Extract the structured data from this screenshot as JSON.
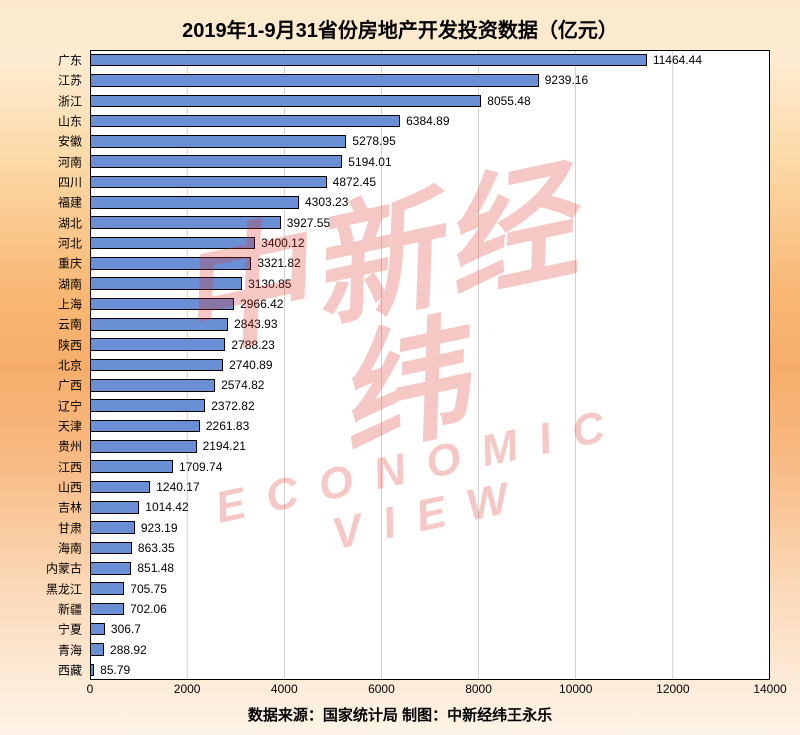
{
  "title": "2019年1-9月31省份房地产开发投资数据（亿元）",
  "title_fontsize": 20,
  "source": "数据来源：国家统计局  制图：中新经纬王永乐",
  "watermark_cn": "中新经纬",
  "watermark_en": "ECONOMIC VIEW",
  "chart": {
    "type": "bar-horizontal",
    "xlim": [
      0,
      14000
    ],
    "xtick_step": 2000,
    "xlabels": [
      "0",
      "2000",
      "4000",
      "6000",
      "8000",
      "10000",
      "12000",
      "14000"
    ],
    "bar_fill": "#6b8fd4",
    "bar_border": "#000000",
    "grid_color": "#000000",
    "background_color": "#ffffff",
    "bar_height_ratio": 0.62,
    "label_fontsize": 12,
    "data": [
      {
        "name": "广东",
        "value": 11464.44
      },
      {
        "name": "江苏",
        "value": 9239.16
      },
      {
        "name": "浙江",
        "value": 8055.48
      },
      {
        "name": "山东",
        "value": 6384.89
      },
      {
        "name": "安徽",
        "value": 5278.95
      },
      {
        "name": "河南",
        "value": 5194.01
      },
      {
        "name": "四川",
        "value": 4872.45
      },
      {
        "name": "福建",
        "value": 4303.23
      },
      {
        "name": "湖北",
        "value": 3927.55
      },
      {
        "name": "河北",
        "value": 3400.12
      },
      {
        "name": "重庆",
        "value": 3321.82
      },
      {
        "name": "湖南",
        "value": 3130.85
      },
      {
        "name": "上海",
        "value": 2966.42
      },
      {
        "name": "云南",
        "value": 2843.93
      },
      {
        "name": "陕西",
        "value": 2788.23
      },
      {
        "name": "北京",
        "value": 2740.89
      },
      {
        "name": "广西",
        "value": 2574.82
      },
      {
        "name": "辽宁",
        "value": 2372.82
      },
      {
        "name": "天津",
        "value": 2261.83
      },
      {
        "name": "贵州",
        "value": 2194.21
      },
      {
        "name": "江西",
        "value": 1709.74
      },
      {
        "name": "山西",
        "value": 1240.17
      },
      {
        "name": "吉林",
        "value": 1014.42
      },
      {
        "name": "甘肃",
        "value": 923.19
      },
      {
        "name": "海南",
        "value": 863.35
      },
      {
        "name": "内蒙古",
        "value": 851.48
      },
      {
        "name": "黑龙江",
        "value": 705.75
      },
      {
        "name": "新疆",
        "value": 702.06
      },
      {
        "name": "宁夏",
        "value": 306.7
      },
      {
        "name": "青海",
        "value": 288.92
      },
      {
        "name": "西藏",
        "value": 85.79
      }
    ]
  }
}
